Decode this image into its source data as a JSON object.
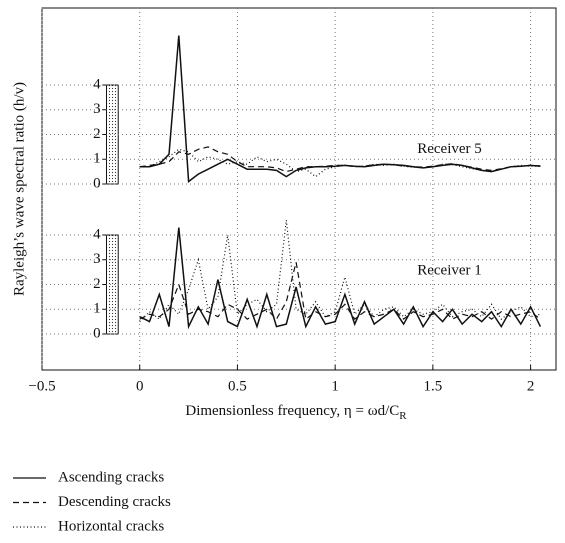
{
  "chart_data": {
    "type": "line",
    "ylabel": "Rayleigh’s wave spectral ratio (h/v)",
    "xlabel": "Dimensionless frequency, η = ωd/C",
    "xlabel_sub": "R",
    "xlim": [
      -0.5,
      2.13
    ],
    "xticks": [
      {
        "value": -0.5,
        "label": "−0.5"
      },
      0,
      0.5,
      1,
      1.5,
      2
    ],
    "grid": true,
    "legend": [
      {
        "name": "Ascending cracks",
        "color": "#111111",
        "dash": "solid"
      },
      {
        "name": "Descending cracks",
        "color": "#111111",
        "dash": "dashed"
      },
      {
        "name": "Horizontal cracks",
        "color": "#111111",
        "dash": "dotted"
      }
    ],
    "x": [
      0,
      0.05,
      0.1,
      0.15,
      0.2,
      0.25,
      0.3,
      0.35,
      0.4,
      0.45,
      0.5,
      0.55,
      0.6,
      0.65,
      0.7,
      0.75,
      0.8,
      0.85,
      0.9,
      0.95,
      1,
      1.05,
      1.1,
      1.15,
      1.2,
      1.25,
      1.3,
      1.35,
      1.4,
      1.45,
      1.5,
      1.55,
      1.6,
      1.65,
      1.7,
      1.75,
      1.8,
      1.85,
      1.9,
      1.95,
      2,
      2.05
    ],
    "panels": [
      {
        "label": "Receiver 5",
        "ylim": [
          0,
          4
        ],
        "yticks": [
          0,
          1,
          2,
          3,
          4
        ],
        "series": [
          {
            "values": [
              0.7,
              0.7,
              0.8,
              1.2,
              6.0,
              0.1,
              0.4,
              0.6,
              0.8,
              1.0,
              0.8,
              0.6,
              0.6,
              0.6,
              0.55,
              0.3,
              0.55,
              0.65,
              0.7,
              0.7,
              0.72,
              0.75,
              0.72,
              0.7,
              0.75,
              0.8,
              0.78,
              0.75,
              0.7,
              0.65,
              0.7,
              0.75,
              0.8,
              0.75,
              0.65,
              0.55,
              0.5,
              0.6,
              0.7,
              0.72,
              0.75,
              0.72
            ]
          },
          {
            "values": [
              0.7,
              0.75,
              0.8,
              0.9,
              1.3,
              1.2,
              1.4,
              1.5,
              1.3,
              1.2,
              0.9,
              0.7,
              0.7,
              0.7,
              0.65,
              0.5,
              0.6,
              0.7,
              0.7,
              0.72,
              0.75,
              0.75,
              0.7,
              0.72,
              0.78,
              0.8,
              0.78,
              0.72,
              0.7,
              0.68,
              0.72,
              0.78,
              0.82,
              0.75,
              0.68,
              0.6,
              0.55,
              0.62,
              0.7,
              0.72,
              0.75,
              0.73
            ]
          },
          {
            "values": [
              0.7,
              0.7,
              0.9,
              1.1,
              1.4,
              1.3,
              0.9,
              1.1,
              1.0,
              0.8,
              0.9,
              0.8,
              1.1,
              0.9,
              1.0,
              0.8,
              0.5,
              0.6,
              0.3,
              0.6,
              0.7,
              0.75,
              0.7,
              0.72,
              0.8,
              0.75,
              0.8,
              0.72,
              0.68,
              0.65,
              0.7,
              0.8,
              0.78,
              0.7,
              0.62,
              0.55,
              0.52,
              0.6,
              0.7,
              0.75,
              0.72,
              0.72
            ]
          }
        ]
      },
      {
        "label": "Receiver 1",
        "ylim": [
          0,
          4
        ],
        "yticks": [
          0,
          1,
          2,
          3,
          4
        ],
        "series": [
          {
            "values": [
              0.7,
              0.5,
              1.6,
              0.3,
              4.3,
              0.3,
              1.1,
              0.4,
              2.2,
              0.5,
              0.3,
              1.4,
              0.3,
              1.6,
              0.3,
              0.4,
              1.9,
              0.3,
              1.1,
              0.4,
              0.5,
              1.6,
              0.4,
              1.3,
              0.4,
              0.7,
              1.0,
              0.4,
              1.1,
              0.3,
              0.9,
              0.5,
              1.0,
              0.4,
              0.8,
              0.5,
              0.9,
              0.3,
              1.0,
              0.4,
              1.1,
              0.3
            ]
          },
          {
            "values": [
              0.6,
              0.8,
              0.7,
              1.0,
              2.0,
              0.8,
              1.0,
              0.9,
              0.7,
              1.2,
              1.0,
              0.6,
              0.8,
              1.0,
              0.6,
              1.3,
              2.9,
              0.6,
              0.9,
              0.7,
              0.8,
              1.2,
              0.6,
              0.9,
              0.7,
              0.8,
              1.0,
              0.6,
              0.9,
              0.7,
              0.8,
              1.0,
              0.6,
              0.8,
              0.7,
              0.9,
              0.6,
              0.9,
              0.7,
              0.8,
              0.9,
              0.6
            ]
          },
          {
            "values": [
              0.5,
              0.9,
              0.6,
              1.2,
              0.8,
              1.8,
              3.0,
              1.0,
              1.5,
              4.0,
              0.8,
              1.2,
              1.4,
              0.9,
              1.2,
              4.6,
              1.0,
              0.8,
              1.3,
              0.7,
              0.9,
              2.3,
              0.8,
              1.2,
              0.7,
              1.0,
              1.1,
              0.7,
              1.0,
              0.8,
              0.9,
              1.2,
              0.7,
              0.9,
              1.0,
              0.7,
              1.2,
              0.6,
              0.9,
              1.1,
              0.7,
              0.8
            ]
          }
        ]
      }
    ]
  }
}
